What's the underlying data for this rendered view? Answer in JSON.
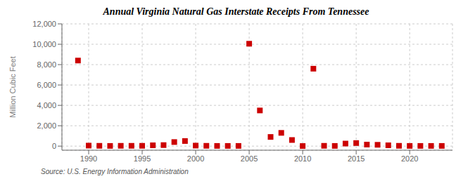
{
  "chart_data": {
    "type": "scatter",
    "title": "Annual Virginia Natural Gas Interstate Receipts From Tennessee",
    "y_label": "Million Cubic Feet",
    "annotations": [
      "Source: U.S. Energy Information Administration"
    ],
    "x": [
      1989,
      1990,
      1991,
      1992,
      1993,
      1994,
      1995,
      1996,
      1997,
      1998,
      1999,
      2000,
      2001,
      2002,
      2003,
      2004,
      2005,
      2006,
      2007,
      2008,
      2009,
      2010,
      2011,
      2012,
      2013,
      2014,
      2015,
      2016,
      2017,
      2018,
      2019,
      2020,
      2021,
      2022,
      2023
    ],
    "values": [
      8400,
      50,
      30,
      20,
      30,
      30,
      30,
      80,
      100,
      400,
      500,
      50,
      30,
      20,
      20,
      20,
      10050,
      3500,
      900,
      1300,
      600,
      10,
      7600,
      30,
      20,
      250,
      300,
      150,
      130,
      80,
      30,
      20,
      20,
      20,
      20
    ],
    "color": "#cc0000",
    "marker": "square",
    "xlim": [
      1987.5,
      2024
    ],
    "ylim": [
      -400,
      12000
    ],
    "xticks": [
      1990,
      1995,
      2000,
      2005,
      2010,
      2015,
      2020
    ],
    "yticks": [
      0,
      {
        "value": 2000,
        "label": "2,000"
      },
      {
        "value": 4000,
        "label": "4,000"
      },
      {
        "value": 6000,
        "label": "6,000"
      },
      {
        "value": 8000,
        "label": "8,000"
      },
      {
        "value": 10000,
        "label": "10,000"
      },
      {
        "value": 12000,
        "label": "12,000"
      }
    ],
    "grid": true
  }
}
